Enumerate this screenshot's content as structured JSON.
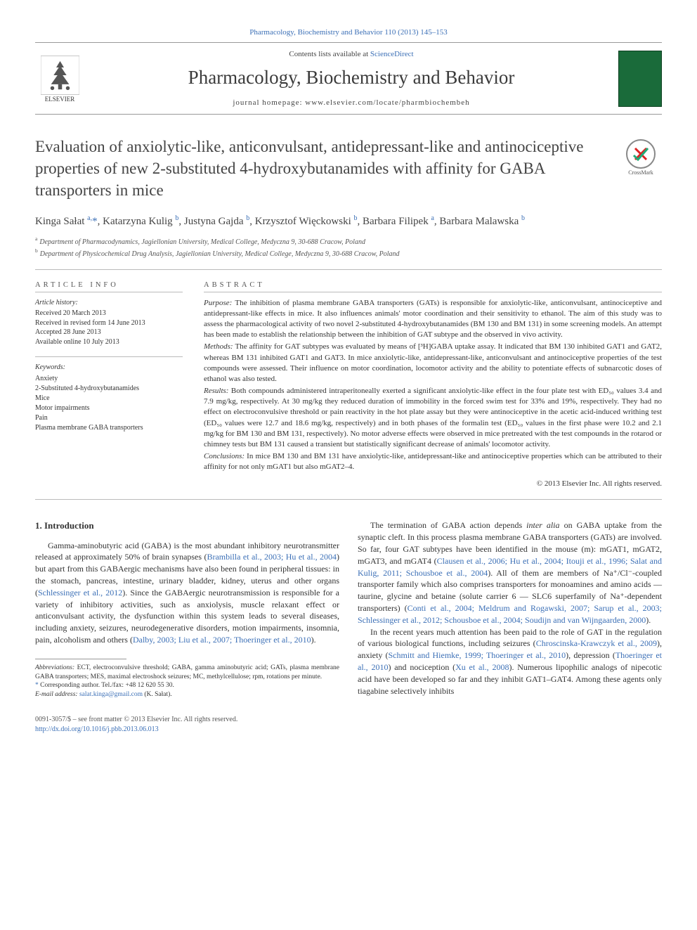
{
  "header": {
    "citation_link_text": "Pharmacology, Biochemistry and Behavior 110 (2013) 145–153",
    "contents_pre": "Contents lists available at ",
    "contents_link": "ScienceDirect",
    "journal_name": "Pharmacology, Biochemistry and Behavior",
    "homepage_pre": "journal homepage: ",
    "homepage_url": "www.elsevier.com/locate/pharmbiochembeh",
    "elsevier_label": "ELSEVIER"
  },
  "title": "Evaluation of anxiolytic-like, anticonvulsant, antidepressant-like and antinociceptive properties of new 2-substituted 4-hydroxybutanamides with affinity for GABA transporters in mice",
  "crossmark_label": "CrossMark",
  "authors_html": "Kinga Sałat <sup>a,</sup><span class='star'>*</span>, Katarzyna Kulig <sup>b</sup>, Justyna Gajda <sup>b</sup>, Krzysztof Więckowski <sup>b</sup>, Barbara Filipek <sup>a</sup>, Barbara Malawska <sup>b</sup>",
  "affiliations": {
    "a": "Department of Pharmacodynamics, Jagiellonian University, Medical College, Medyczna 9, 30-688 Cracow, Poland",
    "b": "Department of Physicochemical Drug Analysis, Jagiellonian University, Medical College, Medyczna 9, 30-688 Cracow, Poland"
  },
  "article_info": {
    "head": "ARTICLE INFO",
    "history_label": "Article history:",
    "history": [
      "Received 20 March 2013",
      "Received in revised form 14 June 2013",
      "Accepted 28 June 2013",
      "Available online 10 July 2013"
    ],
    "keywords_label": "Keywords:",
    "keywords": [
      "Anxiety",
      "2-Substituted 4-hydroxybutanamides",
      "Mice",
      "Motor impairments",
      "Pain",
      "Plasma membrane GABA transporters"
    ]
  },
  "abstract": {
    "head": "ABSTRACT",
    "purpose_label": "Purpose:",
    "purpose": "The inhibition of plasma membrane GABA transporters (GATs) is responsible for anxiolytic-like, anticonvulsant, antinociceptive and antidepressant-like effects in mice. It also influences animals' motor coordination and their sensitivity to ethanol. The aim of this study was to assess the pharmacological activity of two novel 2-substituted 4-hydroxybutanamides (BM 130 and BM 131) in some screening models. An attempt has been made to establish the relationship between the inhibition of GAT subtype and the observed in vivo activity.",
    "methods_label": "Methods:",
    "methods": "The affinity for GAT subtypes was evaluated by means of [³H]GABA uptake assay. It indicated that BM 130 inhibited GAT1 and GAT2, whereas BM 131 inhibited GAT1 and GAT3. In mice anxiolytic-like, antidepressant-like, anticonvulsant and antinociceptive properties of the test compounds were assessed. Their influence on motor coordination, locomotor activity and the ability to potentiate effects of subnarcotic doses of ethanol was also tested.",
    "results_label": "Results:",
    "results": "Both compounds administered intraperitoneally exerted a significant anxiolytic-like effect in the four plate test with ED₅₀ values 3.4 and 7.9 mg/kg, respectively. At 30 mg/kg they reduced duration of immobility in the forced swim test for 33% and 19%, respectively. They had no effect on electroconvulsive threshold or pain reactivity in the hot plate assay but they were antinociceptive in the acetic acid-induced writhing test (ED₅₀ values were 12.7 and 18.6 mg/kg, respectively) and in both phases of the formalin test (ED₅₀ values in the first phase were 10.2 and 2.1 mg/kg for BM 130 and BM 131, respectively). No motor adverse effects were observed in mice pretreated with the test compounds in the rotarod or chimney tests but BM 131 caused a transient but statistically significant decrease of animals' locomotor activity.",
    "conclusions_label": "Conclusions:",
    "conclusions": "In mice BM 130 and BM 131 have anxiolytic-like, antidepressant-like and antinociceptive properties which can be attributed to their affinity for not only mGAT1 but also mGAT2–4.",
    "copyright": "© 2013 Elsevier Inc. All rights reserved."
  },
  "section1": {
    "head": "1. Introduction",
    "p1_pre": "Gamma-aminobutyric acid (GABA) is the most abundant inhibitory neurotransmitter released at approximately 50% of brain synapses (",
    "p1_cite1": "Brambilla et al., 2003; Hu et al., 2004",
    "p1_mid": ") but apart from this GABAergic mechanisms have also been found in peripheral tissues: in the stomach, pancreas, intestine, urinary bladder, kidney, uterus and other organs (",
    "p1_cite2": "Schlessinger et al., 2012",
    "p1_post": "). Since the GABAergic neurotransmission is responsible for a variety of inhibitory activities, such as anxiolysis, muscle relaxant effect or anticonvulsant activity, the dysfunction within this system leads to several diseases, including anxiety, seizures, neurodegenerative disorders, motion impairments, insomnia, pain, alcoholism and others (",
    "p1_cite3": "Dalby, 2003; Liu et al., 2007; Thoeringer et al., 2010",
    "p1_end": ").",
    "p2_pre": "The termination of GABA action depends ",
    "p2_em": "inter alia",
    "p2_mid1": " on GABA uptake from the synaptic cleft. In this process plasma membrane GABA transporters (GATs) are involved. So far, four GAT subtypes have been identified in the mouse (m): mGAT1, mGAT2, mGAT3, and mGAT4 (",
    "p2_cite1": "Clausen et al., 2006; Hu et al., 2004; Itouji et al., 1996; Salat and Kulig, 2011; Schousboe et al., 2004",
    "p2_mid2": "). All of them are members of Na⁺/Cl⁻-coupled transporter family which also comprises transporters for monoamines and amino acids — taurine, glycine and betaine (solute carrier 6 — SLC6 superfamily of Na⁺-dependent transporters) (",
    "p2_cite2": "Conti et al., 2004; Meldrum and Rogawski, 2007; Sarup et al., 2003; Schlessinger et al., 2012; Schousboe et al., 2004; Soudijn and van Wijngaarden, 2000",
    "p2_end": ").",
    "p3_pre": "In the recent years much attention has been paid to the role of GAT in the regulation of various biological functions, including seizures (",
    "p3_cite1": "Chroscinska-Krawczyk et al., 2009",
    "p3_mid1": "), anxiety (",
    "p3_cite2": "Schmitt and Hiemke, 1999; Thoeringer et al., 2010",
    "p3_mid2": "), depression (",
    "p3_cite3": "Thoeringer et al., 2010",
    "p3_mid3": ") and nociception (",
    "p3_cite4": "Xu et al., 2008",
    "p3_post": "). Numerous lipophilic analogs of nipecotic acid have been developed so far and they inhibit GAT1–GAT4. Among these agents only tiagabine selectively inhibits"
  },
  "footnotes": {
    "abbrev_label": "Abbreviations:",
    "abbrev": "ECT, electroconvulsive threshold; GABA, gamma aminobutyric acid; GATs, plasma membrane GABA transporters; MES, maximal electroshock seizures; MC, methylcellulose; rpm, rotations per minute.",
    "corr_label": "Corresponding author. Tel./fax: +48 12 620 55 30.",
    "email_label": "E-mail address:",
    "email": "salat.kinga@gmail.com",
    "email_who": "(K. Sałat)."
  },
  "bottom": {
    "issn": "0091-3057/$ – see front matter © 2013 Elsevier Inc. All rights reserved.",
    "doi_label": "http://dx.doi.org/10.1016/j.pbb.2013.06.013"
  },
  "colors": {
    "link": "#3b6fb6",
    "rule": "#bbbbbb",
    "text": "#333333",
    "cover": "#1a6b3a"
  }
}
